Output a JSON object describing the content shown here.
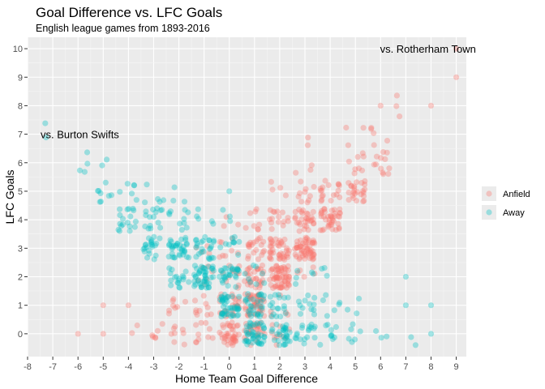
{
  "chart_data": {
    "type": "scatter",
    "title": "Goal Difference vs. LFC Goals",
    "subtitle": "English league games from 1893-2016",
    "xlabel": "Home Team Goal Difference",
    "ylabel": "LFC Goals",
    "xlim": [
      -8,
      9.4
    ],
    "ylim": [
      -0.8,
      10.4
    ],
    "x_ticks": [
      -8,
      -7,
      -6,
      -5,
      -4,
      -3,
      -2,
      -1,
      0,
      1,
      2,
      3,
      4,
      5,
      6,
      7,
      8,
      9
    ],
    "y_ticks": [
      0,
      1,
      2,
      3,
      4,
      5,
      6,
      7,
      8,
      9,
      10
    ],
    "grid": true,
    "legend_position": "right",
    "legend": [
      {
        "name": "Anfield",
        "color": "#F8766D"
      },
      {
        "name": "Away",
        "color": "#00BFC4"
      }
    ],
    "annotations": [
      {
        "text": "vs. Burton Swifts",
        "x": -8,
        "y": 7
      },
      {
        "text": "vs. Rotherham Town",
        "x": 9,
        "y": 10
      }
    ],
    "series": [
      {
        "name": "Anfield",
        "color": "#F8766D",
        "clusters": [
          {
            "x": 0,
            "y": 0,
            "n": 40
          },
          {
            "x": 1,
            "y": 0,
            "n": 30
          },
          {
            "x": 2,
            "y": 0,
            "n": 10
          },
          {
            "x": -1,
            "y": 0,
            "n": 10
          },
          {
            "x": -2,
            "y": 0,
            "n": 8
          },
          {
            "x": -3,
            "y": 0,
            "n": 6
          },
          {
            "x": 1,
            "y": 1,
            "n": 50
          },
          {
            "x": 0,
            "y": 1,
            "n": 25
          },
          {
            "x": -1,
            "y": 1,
            "n": 10
          },
          {
            "x": -2,
            "y": 1,
            "n": 8
          },
          {
            "x": 2,
            "y": 1,
            "n": 5
          },
          {
            "x": 2,
            "y": 2,
            "n": 60
          },
          {
            "x": 1,
            "y": 2,
            "n": 30
          },
          {
            "x": 0,
            "y": 2,
            "n": 12
          },
          {
            "x": -1,
            "y": 2,
            "n": 6
          },
          {
            "x": 3,
            "y": 2,
            "n": 5
          },
          {
            "x": 3,
            "y": 3,
            "n": 55
          },
          {
            "x": 2,
            "y": 3,
            "n": 40
          },
          {
            "x": 1,
            "y": 3,
            "n": 20
          },
          {
            "x": 0,
            "y": 3,
            "n": 8
          },
          {
            "x": -1,
            "y": 3,
            "n": 4
          },
          {
            "x": 4,
            "y": 4,
            "n": 40
          },
          {
            "x": 3,
            "y": 4,
            "n": 30
          },
          {
            "x": 2,
            "y": 4,
            "n": 15
          },
          {
            "x": 1,
            "y": 4,
            "n": 8
          },
          {
            "x": 0,
            "y": 4,
            "n": 3
          },
          {
            "x": 5,
            "y": 5,
            "n": 25
          },
          {
            "x": 4,
            "y": 5,
            "n": 18
          },
          {
            "x": 3,
            "y": 5,
            "n": 10
          },
          {
            "x": 2,
            "y": 5,
            "n": 4
          },
          {
            "x": 6,
            "y": 6,
            "n": 12
          },
          {
            "x": 5,
            "y": 6,
            "n": 8
          },
          {
            "x": 3,
            "y": 6,
            "n": 3
          },
          {
            "x": 6,
            "y": 7,
            "n": 5
          },
          {
            "x": 5,
            "y": 7,
            "n": 3
          },
          {
            "x": 3,
            "y": 7,
            "n": 2
          },
          {
            "x": 7,
            "y": 8,
            "n": 3
          },
          {
            "x": 6,
            "y": 8,
            "n": 1
          },
          {
            "x": 8,
            "y": 8,
            "n": 1
          },
          {
            "x": 9,
            "y": 9,
            "n": 1
          },
          {
            "x": 9,
            "y": 10,
            "n": 1
          },
          {
            "x": -5,
            "y": 1,
            "n": 1
          },
          {
            "x": -4,
            "y": 1,
            "n": 1
          },
          {
            "x": -6,
            "y": 0,
            "n": 1
          },
          {
            "x": -5,
            "y": 0,
            "n": 1
          },
          {
            "x": -4,
            "y": 0,
            "n": 2
          }
        ]
      },
      {
        "name": "Away",
        "color": "#00BFC4",
        "clusters": [
          {
            "x": 1,
            "y": 0,
            "n": 45
          },
          {
            "x": 2,
            "y": 0,
            "n": 30
          },
          {
            "x": 3,
            "y": 0,
            "n": 18
          },
          {
            "x": 4,
            "y": 0,
            "n": 10
          },
          {
            "x": 5,
            "y": 0,
            "n": 6
          },
          {
            "x": 6,
            "y": 0,
            "n": 3
          },
          {
            "x": 7,
            "y": 0,
            "n": 2
          },
          {
            "x": 8,
            "y": 0,
            "n": 1
          },
          {
            "x": 0,
            "y": 1,
            "n": 45
          },
          {
            "x": 1,
            "y": 1,
            "n": 30
          },
          {
            "x": 2,
            "y": 1,
            "n": 18
          },
          {
            "x": 3,
            "y": 1,
            "n": 12
          },
          {
            "x": 4,
            "y": 1,
            "n": 6
          },
          {
            "x": 5,
            "y": 1,
            "n": 3
          },
          {
            "x": 7,
            "y": 1,
            "n": 1
          },
          {
            "x": 8,
            "y": 1,
            "n": 1
          },
          {
            "x": -1,
            "y": 2,
            "n": 45
          },
          {
            "x": 0,
            "y": 2,
            "n": 30
          },
          {
            "x": -2,
            "y": 2,
            "n": 18
          },
          {
            "x": 1,
            "y": 2,
            "n": 8
          },
          {
            "x": 3,
            "y": 2,
            "n": 5
          },
          {
            "x": 4,
            "y": 2,
            "n": 3
          },
          {
            "x": 7,
            "y": 2,
            "n": 1
          },
          {
            "x": -2,
            "y": 3,
            "n": 35
          },
          {
            "x": -1,
            "y": 3,
            "n": 25
          },
          {
            "x": -3,
            "y": 3,
            "n": 22
          },
          {
            "x": 0,
            "y": 3,
            "n": 10
          },
          {
            "x": -4,
            "y": 4,
            "n": 18
          },
          {
            "x": -3,
            "y": 4,
            "n": 15
          },
          {
            "x": -2,
            "y": 4,
            "n": 10
          },
          {
            "x": -1,
            "y": 4,
            "n": 5
          },
          {
            "x": 0,
            "y": 4,
            "n": 3
          },
          {
            "x": -5,
            "y": 5,
            "n": 8
          },
          {
            "x": -4,
            "y": 5,
            "n": 6
          },
          {
            "x": -3,
            "y": 5,
            "n": 5
          },
          {
            "x": -2,
            "y": 5,
            "n": 3
          },
          {
            "x": 0,
            "y": 5,
            "n": 1
          },
          {
            "x": -6,
            "y": 6,
            "n": 4
          },
          {
            "x": -5,
            "y": 6,
            "n": 2
          },
          {
            "x": -7,
            "y": 7,
            "n": 2
          }
        ]
      }
    ]
  }
}
